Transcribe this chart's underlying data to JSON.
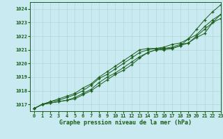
{
  "title": "Graphe pression niveau de la mer (hPa)",
  "bg_color": "#c8eaf0",
  "grid_color": "#b0d8d8",
  "line_color": "#1a5c1a",
  "xlim": [
    -0.5,
    23
  ],
  "ylim": [
    1016.5,
    1024.5
  ],
  "yticks": [
    1017,
    1018,
    1019,
    1020,
    1021,
    1022,
    1023,
    1024
  ],
  "xticks": [
    0,
    1,
    2,
    3,
    4,
    5,
    6,
    7,
    8,
    9,
    10,
    11,
    12,
    13,
    14,
    15,
    16,
    17,
    18,
    19,
    20,
    21,
    22,
    23
  ],
  "series": [
    [
      1016.7,
      1017.0,
      1017.1,
      1017.2,
      1017.3,
      1017.5,
      1017.8,
      1018.1,
      1018.6,
      1019.0,
      1019.3,
      1019.7,
      1020.1,
      1020.5,
      1020.8,
      1021.0,
      1021.1,
      1021.1,
      1021.3,
      1021.5,
      1021.9,
      1022.2,
      1023.0,
      1023.3
    ],
    [
      1016.7,
      1017.0,
      1017.2,
      1017.3,
      1017.5,
      1017.7,
      1018.0,
      1018.4,
      1018.9,
      1019.2,
      1019.6,
      1020.0,
      1020.4,
      1020.8,
      1021.0,
      1021.1,
      1021.1,
      1021.2,
      1021.4,
      1021.5,
      1022.0,
      1022.5,
      1023.0,
      1023.6
    ],
    [
      1016.7,
      1017.0,
      1017.2,
      1017.4,
      1017.6,
      1017.8,
      1018.2,
      1018.5,
      1019.0,
      1019.4,
      1019.8,
      1020.2,
      1020.6,
      1021.0,
      1021.1,
      1021.1,
      1021.2,
      1021.4,
      1021.5,
      1021.8,
      1022.1,
      1022.7,
      1023.2,
      1023.6
    ],
    [
      1016.7,
      1017.0,
      1017.1,
      1017.2,
      1017.3,
      1017.4,
      1017.7,
      1018.0,
      1018.4,
      1018.8,
      1019.2,
      1019.5,
      1019.9,
      1020.4,
      1020.8,
      1021.0,
      1021.0,
      1021.1,
      1021.3,
      1021.8,
      1022.5,
      1023.2,
      1023.8,
      1024.3
    ]
  ]
}
